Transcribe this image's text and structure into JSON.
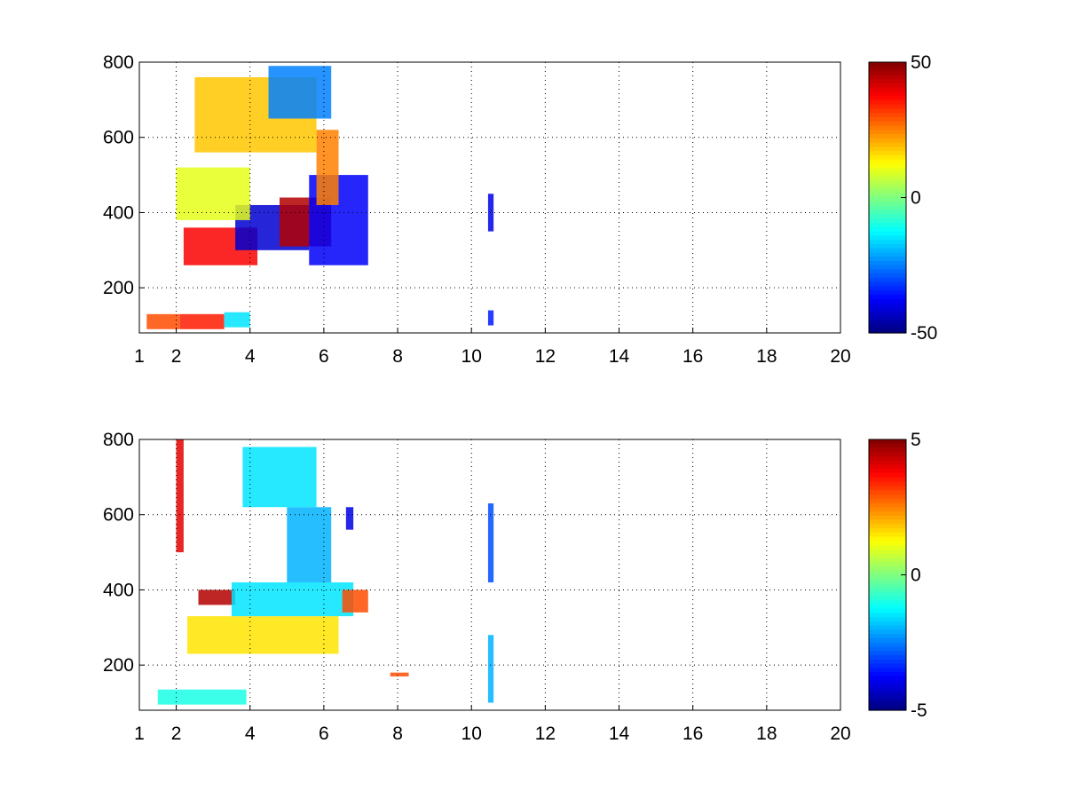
{
  "colormap": "jet",
  "chart_data": [
    {
      "type": "heatmap",
      "title": "",
      "xlabel": "",
      "ylabel": "",
      "xlim": [
        1,
        20
      ],
      "ylim": [
        80,
        800
      ],
      "x_ticks": [
        1,
        2,
        4,
        6,
        8,
        10,
        12,
        14,
        16,
        18,
        20
      ],
      "x_tick_labels": [
        "1",
        "2",
        "4",
        "6",
        "8",
        "10",
        "12",
        "14",
        "16",
        "18",
        "20"
      ],
      "y_ticks": [
        200,
        400,
        600,
        800
      ],
      "y_tick_labels": [
        "200",
        "400",
        "600",
        "800"
      ],
      "grid": true,
      "colorbar": {
        "min": -50,
        "max": 50,
        "tick_labels": [
          "50",
          "0",
          "-50"
        ],
        "ticks": [
          50,
          0,
          -50
        ]
      },
      "regions": [
        {
          "x": [
            1.2,
            2.1
          ],
          "y": [
            90,
            130
          ],
          "value": 30
        },
        {
          "x": [
            2.1,
            3.3
          ],
          "y": [
            90,
            130
          ],
          "value": 35
        },
        {
          "x": [
            3.3,
            4.0
          ],
          "y": [
            95,
            135
          ],
          "value": -15
        },
        {
          "x": [
            2.2,
            4.2
          ],
          "y": [
            260,
            360
          ],
          "value": 38
        },
        {
          "x": [
            3.6,
            5.6
          ],
          "y": [
            300,
            420
          ],
          "value": -42
        },
        {
          "x": [
            4.8,
            6.2
          ],
          "y": [
            310,
            440
          ],
          "value": 45
        },
        {
          "x": [
            5.6,
            7.2
          ],
          "y": [
            260,
            500
          ],
          "value": -38
        },
        {
          "x": [
            5.8,
            6.4
          ],
          "y": [
            420,
            620
          ],
          "value": 25
        },
        {
          "x": [
            2.5,
            5.8
          ],
          "y": [
            560,
            760
          ],
          "value": 18
        },
        {
          "x": [
            4.5,
            6.2
          ],
          "y": [
            650,
            790
          ],
          "value": -25
        },
        {
          "x": [
            2.0,
            4.0
          ],
          "y": [
            380,
            520
          ],
          "value": 10
        },
        {
          "x": [
            10.45,
            10.6
          ],
          "y": [
            350,
            450
          ],
          "value": -40
        },
        {
          "x": [
            10.45,
            10.6
          ],
          "y": [
            100,
            140
          ],
          "value": -35
        }
      ]
    },
    {
      "type": "heatmap",
      "title": "",
      "xlabel": "",
      "ylabel": "",
      "xlim": [
        1,
        20
      ],
      "ylim": [
        80,
        800
      ],
      "x_ticks": [
        1,
        2,
        4,
        6,
        8,
        10,
        12,
        14,
        16,
        18,
        20
      ],
      "x_tick_labels": [
        "1",
        "2",
        "4",
        "6",
        "8",
        "10",
        "12",
        "14",
        "16",
        "18",
        "20"
      ],
      "y_ticks": [
        200,
        400,
        600,
        800
      ],
      "y_tick_labels": [
        "200",
        "400",
        "600",
        "800"
      ],
      "grid": true,
      "colorbar": {
        "min": -5,
        "max": 5,
        "tick_labels": [
          "5",
          "0",
          "-5"
        ],
        "ticks": [
          5,
          0,
          -5
        ]
      },
      "regions": [
        {
          "x": [
            1.5,
            3.9
          ],
          "y": [
            95,
            135
          ],
          "value": -1
        },
        {
          "x": [
            2.3,
            6.4
          ],
          "y": [
            230,
            330
          ],
          "value": 1.5
        },
        {
          "x": [
            2.6,
            3.6
          ],
          "y": [
            360,
            400
          ],
          "value": 4.5
        },
        {
          "x": [
            3.5,
            6.8
          ],
          "y": [
            330,
            420
          ],
          "value": -1.5
        },
        {
          "x": [
            5.0,
            6.2
          ],
          "y": [
            420,
            620
          ],
          "value": -2
        },
        {
          "x": [
            3.8,
            5.8
          ],
          "y": [
            620,
            780
          ],
          "value": -1.5
        },
        {
          "x": [
            6.5,
            7.2
          ],
          "y": [
            340,
            400
          ],
          "value": 3
        },
        {
          "x": [
            6.6,
            6.8
          ],
          "y": [
            560,
            620
          ],
          "value": -4
        },
        {
          "x": [
            10.45,
            10.6
          ],
          "y": [
            420,
            630
          ],
          "value": -3
        },
        {
          "x": [
            10.45,
            10.6
          ],
          "y": [
            100,
            280
          ],
          "value": -2
        },
        {
          "x": [
            2.0,
            2.2
          ],
          "y": [
            500,
            800
          ],
          "value": 4
        },
        {
          "x": [
            7.8,
            8.3
          ],
          "y": [
            170,
            180
          ],
          "value": 3
        }
      ]
    }
  ]
}
